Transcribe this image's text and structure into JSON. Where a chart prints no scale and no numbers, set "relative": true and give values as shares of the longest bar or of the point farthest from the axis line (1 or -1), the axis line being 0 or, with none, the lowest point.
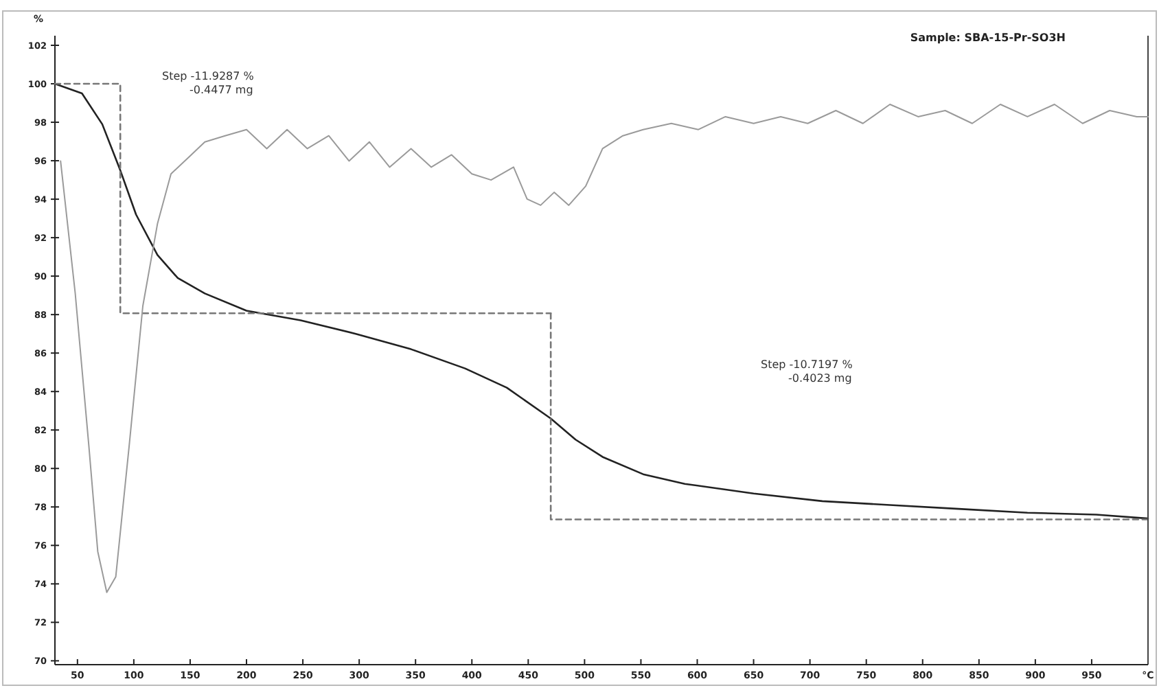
{
  "chart_data": [
    {
      "type": "line",
      "title": "Sample: SBA-15-Pr-SO3H",
      "xlabel": "°C",
      "ylabel": "%",
      "xlim": [
        30,
        1000
      ],
      "xticks": [
        50,
        100,
        150,
        200,
        250,
        300,
        350,
        400,
        450,
        500,
        550,
        600,
        650,
        700,
        750,
        800,
        850,
        900,
        950
      ],
      "ylim": [
        69.8,
        102.5
      ],
      "yticks": [
        70,
        72,
        74,
        76,
        78,
        80,
        82,
        84,
        86,
        88,
        90,
        92,
        94,
        96,
        98,
        100,
        102
      ],
      "series": [
        {
          "color": "#222222",
          "x": [
            30,
            54,
            72,
            88,
            102,
            121,
            139,
            163,
            200,
            248,
            297,
            346,
            394,
            431,
            470,
            492,
            516,
            552,
            589,
            650,
            711,
            771,
            832,
            893,
            954,
            1000
          ],
          "values": [
            100,
            99.5,
            97.9,
            95.5,
            93.2,
            91.1,
            89.9,
            89.1,
            88.2,
            87.7,
            87.0,
            86.2,
            85.2,
            84.2,
            82.6,
            81.5,
            80.6,
            79.7,
            79.2,
            78.7,
            78.3,
            78.1,
            77.9,
            77.7,
            77.6,
            77.4
          ]
        },
        {
          "color": "#777777",
          "line_style": "dashed",
          "x": [
            30,
            88,
            88,
            470
          ],
          "values": [
            100,
            100,
            88.07,
            88.07
          ]
        },
        {
          "color": "#777777",
          "line_style": "dashed",
          "x": [
            470,
            470,
            1000
          ],
          "values": [
            88.07,
            77.35,
            77.35
          ]
        }
      ],
      "annotations": [
        "Step  -11.9287 %\n-0.4477 mg",
        "Step  -10.7197 %\n-0.4023 mg"
      ]
    },
    {
      "type": "line",
      "relative": true,
      "xlim": [
        30,
        1000
      ],
      "series": [
        {
          "color": "#9a9a9a",
          "x": [
            35,
            48,
            60,
            68,
            76,
            84,
            96,
            108,
            121,
            133,
            151,
            163,
            181,
            200,
            218,
            236,
            254,
            273,
            291,
            309,
            327,
            346,
            364,
            382,
            400,
            417,
            437,
            449,
            461,
            473,
            486,
            501,
            516,
            534,
            552,
            577,
            601,
            625,
            650,
            674,
            698,
            723,
            747,
            771,
            796,
            820,
            844,
            869,
            893,
            917,
            942,
            966,
            990,
            1000
          ],
          "values": [
            0.899,
            0.663,
            0.393,
            0.202,
            0.129,
            0.157,
            0.393,
            0.64,
            0.787,
            0.876,
            0.91,
            0.933,
            0.944,
            0.955,
            0.921,
            0.955,
            0.921,
            0.944,
            0.899,
            0.933,
            0.888,
            0.921,
            0.888,
            0.91,
            0.876,
            0.865,
            0.888,
            0.831,
            0.82,
            0.843,
            0.82,
            0.854,
            0.921,
            0.944,
            0.955,
            0.966,
            0.955,
            0.978,
            0.966,
            0.978,
            0.966,
            0.989,
            0.966,
            1,
            0.978,
            0.989,
            0.966,
            1,
            0.978,
            1,
            0.966,
            0.989,
            0.978,
            0.978
          ]
        }
      ]
    }
  ]
}
